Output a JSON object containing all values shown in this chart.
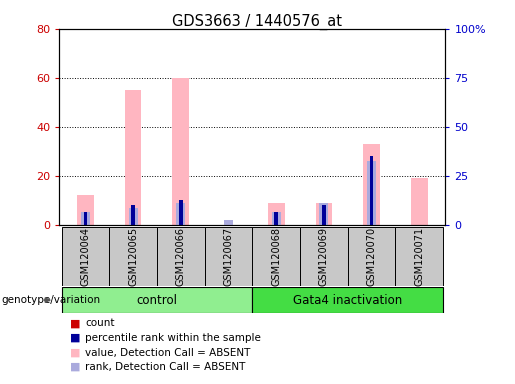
{
  "title": "GDS3663 / 1440576_at",
  "samples": [
    "GSM120064",
    "GSM120065",
    "GSM120066",
    "GSM120067",
    "GSM120068",
    "GSM120069",
    "GSM120070",
    "GSM120071"
  ],
  "count": [
    0,
    0,
    0,
    0,
    0,
    0,
    0,
    0
  ],
  "percentile_rank": [
    5,
    8,
    10,
    0,
    5,
    8,
    28,
    0
  ],
  "value_absent": [
    12,
    55,
    60,
    0,
    9,
    9,
    33,
    19
  ],
  "rank_absent": [
    5,
    7,
    9,
    2,
    5,
    9,
    26,
    0
  ],
  "ylim_left": [
    0,
    80
  ],
  "ylim_right": [
    0,
    100
  ],
  "yticks_left": [
    0,
    20,
    40,
    60,
    80
  ],
  "yticks_right": [
    0,
    25,
    50,
    75,
    100
  ],
  "ytick_labels_right": [
    "0",
    "25",
    "50",
    "75",
    "100%"
  ],
  "bar_width": 0.35,
  "colors": {
    "count": "#CC0000",
    "percentile_rank": "#000099",
    "value_absent": "#FFB6C1",
    "rank_absent": "#AAAADD",
    "background_plot": "#FFFFFF",
    "group_control": "#90EE90",
    "group_gata4": "#44DD44",
    "left_ticks": "#CC0000",
    "right_ticks": "#0000CC",
    "xticklabel_bg": "#C8C8C8"
  },
  "legend": [
    {
      "label": "count",
      "color": "#CC0000"
    },
    {
      "label": "percentile rank within the sample",
      "color": "#000099"
    },
    {
      "label": "value, Detection Call = ABSENT",
      "color": "#FFB6C1"
    },
    {
      "label": "rank, Detection Call = ABSENT",
      "color": "#AAAADD"
    }
  ],
  "group_label": "genotype/variation",
  "control_range": [
    0,
    3
  ],
  "gata4_range": [
    4,
    7
  ]
}
